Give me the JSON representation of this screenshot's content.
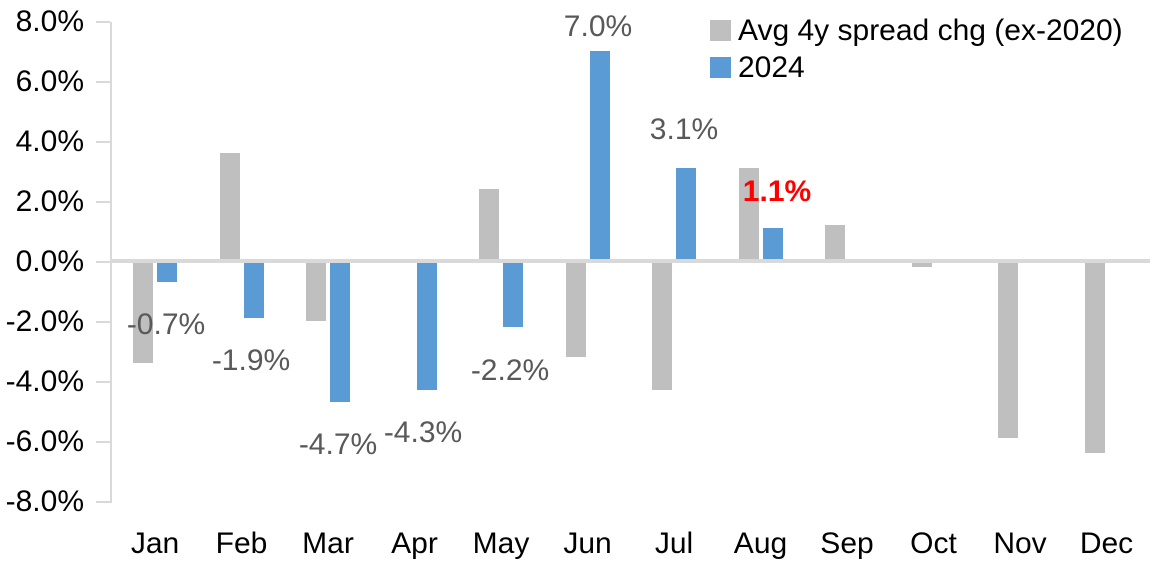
{
  "chart_data": {
    "type": "bar",
    "title": "",
    "xlabel": "",
    "ylabel": "",
    "categories": [
      "Jan",
      "Feb",
      "Mar",
      "Apr",
      "May",
      "Jun",
      "Jul",
      "Aug",
      "Sep",
      "Oct",
      "Nov",
      "Dec"
    ],
    "series": [
      {
        "name": "Avg 4y spread chg (ex-2020)",
        "color": "#BFBFBF",
        "values": [
          -3.4,
          3.6,
          -2.0,
          0.0,
          2.4,
          -3.2,
          -4.3,
          3.1,
          1.2,
          -0.2,
          -5.9,
          -6.4
        ]
      },
      {
        "name": "2024",
        "color": "#5B9BD5",
        "values": [
          -0.7,
          -1.9,
          -4.7,
          -4.3,
          -2.2,
          7.0,
          3.1,
          1.1,
          null,
          null,
          null,
          null
        ]
      }
    ],
    "y_axis": {
      "min": -8,
      "max": 8,
      "step": 2,
      "tick_labels": [
        "8.0%",
        "6.0%",
        "4.0%",
        "2.0%",
        "0.0%",
        "-2.0%",
        "-4.0%",
        "-6.0%",
        "-8.0%"
      ]
    },
    "grid": false,
    "legend_position": "top-right",
    "annotations": [
      {
        "text": "-0.7%",
        "month": "Jan",
        "series": "2024",
        "color": "#595959",
        "bold": false
      },
      {
        "text": "-1.9%",
        "month": "Feb",
        "series": "2024",
        "color": "#595959",
        "bold": false
      },
      {
        "text": "-4.7%",
        "month": "Mar",
        "series": "2024",
        "color": "#595959",
        "bold": false
      },
      {
        "text": "-4.3%",
        "month": "Apr",
        "series": "2024",
        "color": "#595959",
        "bold": false
      },
      {
        "text": "-2.2%",
        "month": "May",
        "series": "2024",
        "color": "#595959",
        "bold": false
      },
      {
        "text": "7.0%",
        "month": "Jun",
        "series": "2024",
        "color": "#595959",
        "bold": false
      },
      {
        "text": "3.1%",
        "month": "Jul",
        "series": "2024",
        "color": "#595959",
        "bold": false
      },
      {
        "text": "1.1%",
        "month": "Aug",
        "series": "2024",
        "color": "#FF0000",
        "bold": true
      }
    ],
    "colors": {
      "axis_line": "#D9D9D9",
      "tick_text": "#000000",
      "data_label": "#595959",
      "highlight_label": "#FF0000",
      "gray_series": "#BFBFBF",
      "blue_series": "#5B9BD5"
    }
  },
  "legend": {
    "items": [
      {
        "label": "Avg 4y spread chg (ex-2020)",
        "color": "#BFBFBF"
      },
      {
        "label": "2024",
        "color": "#5B9BD5"
      }
    ]
  }
}
